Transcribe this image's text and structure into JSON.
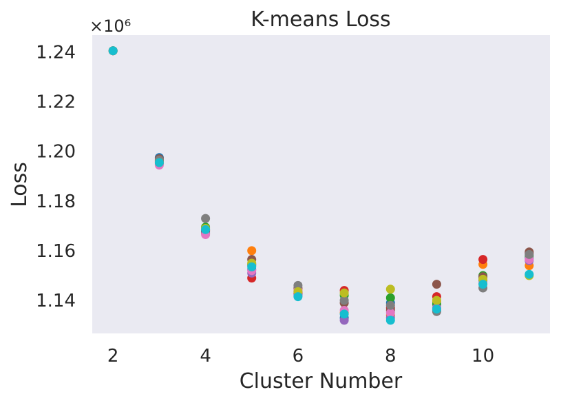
{
  "chart_data": {
    "type": "scatter",
    "title": "K-means Loss",
    "xlabel": "Cluster Number",
    "ylabel": "Loss",
    "y_offset_label": "×10⁶",
    "grid": false,
    "xlim": [
      1.55,
      11.45
    ],
    "ylim": [
      1.1267,
      1.2468
    ],
    "x_ticks": [
      2,
      4,
      6,
      8,
      10
    ],
    "x_tick_labels": [
      "2",
      "4",
      "6",
      "8",
      "10"
    ],
    "y_ticks": [
      1.14,
      1.16,
      1.18,
      1.2,
      1.22,
      1.24
    ],
    "y_tick_labels": [
      "1.14",
      "1.16",
      "1.18",
      "1.20",
      "1.22",
      "1.24"
    ],
    "colors": [
      "#1f77b4",
      "#ff7f0e",
      "#2ca02c",
      "#d62728",
      "#9467bd",
      "#8c564b",
      "#e377c2",
      "#7f7f7f",
      "#bcbd22",
      "#17becf"
    ],
    "series": [
      {
        "x": [
          2,
          3,
          4,
          5,
          6,
          7,
          8,
          9,
          10,
          11
        ],
        "y": [
          1.2405,
          1.1975,
          1.1685,
          1.1525,
          1.1425,
          1.133,
          1.139,
          1.136,
          1.148,
          1.157
        ]
      },
      {
        "x": [
          2,
          3,
          4,
          5,
          6,
          7,
          8,
          9,
          10,
          11
        ],
        "y": [
          1.2405,
          1.1955,
          1.168,
          1.16,
          1.1445,
          1.135,
          1.134,
          1.1395,
          1.1545,
          1.154
        ]
      },
      {
        "x": [
          2,
          3,
          4,
          5,
          6,
          7,
          8,
          9,
          10,
          11
        ],
        "y": [
          1.2405,
          1.1965,
          1.1695,
          1.1545,
          1.1435,
          1.142,
          1.141,
          1.1385,
          1.15,
          1.158
        ]
      },
      {
        "x": [
          2,
          3,
          4,
          5,
          6,
          7,
          8,
          9,
          10,
          11
        ],
        "y": [
          1.2405,
          1.196,
          1.167,
          1.149,
          1.143,
          1.144,
          1.137,
          1.1415,
          1.1565,
          1.159
        ]
      },
      {
        "x": [
          2,
          3,
          4,
          5,
          6,
          7,
          8,
          9,
          10,
          11
        ],
        "y": [
          1.2405,
          1.195,
          1.1675,
          1.151,
          1.142,
          1.132,
          1.133,
          1.137,
          1.149,
          1.156
        ]
      },
      {
        "x": [
          2,
          3,
          4,
          5,
          6,
          7,
          8,
          9,
          10,
          11
        ],
        "y": [
          1.2405,
          1.197,
          1.168,
          1.1565,
          1.145,
          1.139,
          1.136,
          1.1465,
          1.1495,
          1.1595
        ]
      },
      {
        "x": [
          2,
          3,
          4,
          5,
          6,
          7,
          8,
          9,
          10,
          11
        ],
        "y": [
          1.2405,
          1.1945,
          1.1665,
          1.152,
          1.144,
          1.136,
          1.135,
          1.1365,
          1.147,
          1.1565
        ]
      },
      {
        "x": [
          2,
          3,
          4,
          5,
          6,
          7,
          8,
          9,
          10,
          11
        ],
        "y": [
          1.2405,
          1.1965,
          1.173,
          1.154,
          1.146,
          1.14,
          1.138,
          1.1355,
          1.145,
          1.1585
        ]
      },
      {
        "x": [
          2,
          3,
          4,
          5,
          6,
          7,
          8,
          9,
          10,
          11
        ],
        "y": [
          1.2405,
          1.1955,
          1.169,
          1.155,
          1.1435,
          1.143,
          1.1445,
          1.14,
          1.1485,
          1.15
        ]
      },
      {
        "x": [
          2,
          3,
          4,
          5,
          6,
          7,
          8,
          9,
          10,
          11
        ],
        "y": [
          1.2405,
          1.1955,
          1.1685,
          1.1535,
          1.1415,
          1.1345,
          1.132,
          1.1365,
          1.1465,
          1.1505
        ]
      }
    ]
  }
}
